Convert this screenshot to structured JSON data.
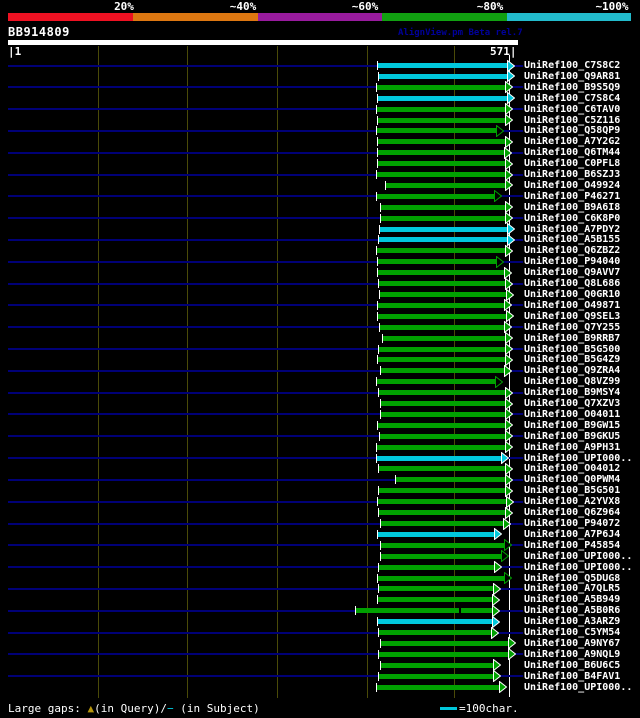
{
  "header": {
    "scale_labels": [
      "20%",
      "~40%",
      "~60%",
      "~80%",
      "~100%"
    ],
    "query_name": "BB914809",
    "version_text": "AlignView.pm Beta rel.7",
    "ruler_start_label": "|1",
    "ruler_end_label": "571|"
  },
  "colors": {
    "scale_segments": [
      "#ee1122",
      "#dd7711",
      "#991b9e",
      "#11a011",
      "#22bbcc"
    ],
    "bar_green": "#00a000",
    "bar_cyan": "#00c8dc",
    "navy_guide": "#000077",
    "gridline_olive": "#4a4a08",
    "version_navy": "#000099",
    "gap_triangle_yellow": "#b8960c",
    "white": "#ffffff"
  },
  "legend": {
    "large_gaps_prefix": "Large gaps: ",
    "query_gap_symbol": "▲",
    "query_gap_text": "(in Query)/",
    "subject_gap_symbol": "−",
    "subject_gap_text": " (in Subject)",
    "scale_bar_text": "=100char."
  },
  "rows": [
    {
      "id": "UniRef100_C7S8C2",
      "color": "cyan",
      "start": 378,
      "tip": 515,
      "hollow": false
    },
    {
      "id": "UniRef100_Q9AR81",
      "color": "cyan",
      "start": 379,
      "tip": 515,
      "hollow": false
    },
    {
      "id": "UniRef100_B9S5Q9",
      "color": "green",
      "start": 377,
      "tip": 513,
      "hollow": false
    },
    {
      "id": "UniRef100_C7S8C4",
      "color": "cyan",
      "start": 378,
      "tip": 515,
      "hollow": false
    },
    {
      "id": "UniRef100_C6TAV0",
      "color": "green",
      "start": 377,
      "tip": 513,
      "hollow": false
    },
    {
      "id": "UniRef100_C5Z116",
      "color": "green",
      "start": 378,
      "tip": 513,
      "hollow": false
    },
    {
      "id": "UniRef100_Q58QP9",
      "color": "green",
      "start": 377,
      "tip": 504,
      "hollow": true
    },
    {
      "id": "UniRef100_A7Y2G2",
      "color": "green",
      "start": 378,
      "tip": 513,
      "hollow": false
    },
    {
      "id": "UniRef100_Q6TM44",
      "color": "green",
      "start": 378,
      "tip": 512,
      "hollow": false
    },
    {
      "id": "UniRef100_C0PFL8",
      "color": "green",
      "start": 378,
      "tip": 513,
      "hollow": false
    },
    {
      "id": "UniRef100_B6SZJ3",
      "color": "green",
      "start": 377,
      "tip": 513,
      "hollow": false
    },
    {
      "id": "UniRef100_O49924",
      "color": "green",
      "start": 386,
      "tip": 513,
      "hollow": false
    },
    {
      "id": "UniRef100_P46271",
      "color": "green",
      "start": 377,
      "tip": 502,
      "hollow": true
    },
    {
      "id": "UniRef100_B9A6I8",
      "color": "green",
      "start": 381,
      "tip": 513,
      "hollow": false
    },
    {
      "id": "UniRef100_C6K8P0",
      "color": "green",
      "start": 381,
      "tip": 513,
      "hollow": false
    },
    {
      "id": "UniRef100_A7PDY2",
      "color": "cyan",
      "start": 380,
      "tip": 515,
      "hollow": false
    },
    {
      "id": "UniRef100_A5B155",
      "color": "cyan",
      "start": 379,
      "tip": 515,
      "hollow": false
    },
    {
      "id": "UniRef100_Q6ZBZ2",
      "color": "green",
      "start": 377,
      "tip": 513,
      "hollow": false
    },
    {
      "id": "UniRef100_P94040",
      "color": "green",
      "start": 378,
      "tip": 504,
      "hollow": true
    },
    {
      "id": "UniRef100_Q9AVV7",
      "color": "green",
      "start": 378,
      "tip": 512,
      "hollow": false
    },
    {
      "id": "UniRef100_Q8L686",
      "color": "green",
      "start": 379,
      "tip": 513,
      "hollow": false
    },
    {
      "id": "UniRef100_Q0GR10",
      "color": "green",
      "start": 380,
      "tip": 514,
      "hollow": false
    },
    {
      "id": "UniRef100_O49871",
      "color": "green",
      "start": 378,
      "tip": 512,
      "hollow": false
    },
    {
      "id": "UniRef100_Q9SEL3",
      "color": "green",
      "start": 378,
      "tip": 514,
      "hollow": false
    },
    {
      "id": "UniRef100_Q7Y255",
      "color": "green",
      "start": 380,
      "tip": 512,
      "hollow": false
    },
    {
      "id": "UniRef100_B9RRB7",
      "color": "green",
      "start": 383,
      "tip": 513,
      "hollow": false
    },
    {
      "id": "UniRef100_B5G500",
      "color": "green",
      "start": 379,
      "tip": 513,
      "hollow": false
    },
    {
      "id": "UniRef100_B5G4Z9",
      "color": "green",
      "start": 378,
      "tip": 513,
      "hollow": false
    },
    {
      "id": "UniRef100_Q9ZRA4",
      "color": "green",
      "start": 381,
      "tip": 512,
      "hollow": false
    },
    {
      "id": "UniRef100_Q8VZ99",
      "color": "green",
      "start": 377,
      "tip": 503,
      "hollow": true
    },
    {
      "id": "UniRef100_B9MSY4",
      "color": "green",
      "start": 379,
      "tip": 513,
      "hollow": false
    },
    {
      "id": "UniRef100_Q7XZV3",
      "color": "green",
      "start": 381,
      "tip": 513,
      "hollow": false
    },
    {
      "id": "UniRef100_O04011",
      "color": "green",
      "start": 381,
      "tip": 513,
      "hollow": false
    },
    {
      "id": "UniRef100_B9GW15",
      "color": "green",
      "start": 378,
      "tip": 513,
      "hollow": false
    },
    {
      "id": "UniRef100_B9GKU5",
      "color": "green",
      "start": 380,
      "tip": 513,
      "hollow": false
    },
    {
      "id": "UniRef100_A9PH31",
      "color": "green",
      "start": 377,
      "tip": 513,
      "hollow": false
    },
    {
      "id": "UniRef100_UPI000..",
      "color": "cyan",
      "start": 377,
      "tip": 509,
      "hollow": false
    },
    {
      "id": "UniRef100_O04012",
      "color": "green",
      "start": 379,
      "tip": 513,
      "hollow": false
    },
    {
      "id": "UniRef100_Q0PWM4",
      "color": "green",
      "start": 396,
      "tip": 513,
      "hollow": false
    },
    {
      "id": "UniRef100_B5G501",
      "color": "green",
      "start": 379,
      "tip": 513,
      "hollow": false
    },
    {
      "id": "UniRef100_A2YVX8",
      "color": "green",
      "start": 378,
      "tip": 514,
      "hollow": false
    },
    {
      "id": "UniRef100_Q6Z964",
      "color": "green",
      "start": 379,
      "tip": 513,
      "hollow": false
    },
    {
      "id": "UniRef100_P94072",
      "color": "green",
      "start": 381,
      "tip": 511,
      "hollow": false
    },
    {
      "id": "UniRef100_A7P6J4",
      "color": "cyan",
      "start": 378,
      "tip": 502,
      "hollow": false
    },
    {
      "id": "UniRef100_P45854",
      "color": "green",
      "start": 381,
      "tip": 512,
      "hollow": true
    },
    {
      "id": "UniRef100_UPI000..",
      "color": "green",
      "start": 381,
      "tip": 509,
      "hollow": true
    },
    {
      "id": "UniRef100_UPI000..",
      "color": "green",
      "start": 379,
      "tip": 502,
      "hollow": false
    },
    {
      "id": "UniRef100_Q5DUG8",
      "color": "green",
      "start": 378,
      "tip": 512,
      "hollow": true
    },
    {
      "id": "UniRef100_A7QLR5",
      "color": "green",
      "start": 379,
      "tip": 501,
      "hollow": false
    },
    {
      "id": "UniRef100_A5B949",
      "color": "green",
      "start": 378,
      "tip": 500,
      "hollow": false
    },
    {
      "id": "UniRef100_A5B0R6",
      "color": "green",
      "start": 356,
      "tip": 500,
      "hollow": false,
      "gap_at": 459
    },
    {
      "id": "UniRef100_A3ARZ9",
      "color": "cyan",
      "start": 378,
      "tip": 500,
      "hollow": false
    },
    {
      "id": "UniRef100_C5YM54",
      "color": "green",
      "start": 379,
      "tip": 499,
      "hollow": false
    },
    {
      "id": "UniRef100_A9NY67",
      "color": "green",
      "start": 381,
      "tip": 516,
      "hollow": false
    },
    {
      "id": "UniRef100_A9NQL9",
      "color": "green",
      "start": 379,
      "tip": 516,
      "hollow": false
    },
    {
      "id": "UniRef100_B6U6C5",
      "color": "green",
      "start": 381,
      "tip": 501,
      "hollow": false
    },
    {
      "id": "UniRef100_B4FAV1",
      "color": "green",
      "start": 379,
      "tip": 501,
      "hollow": false
    },
    {
      "id": "UniRef100_UPI000..",
      "color": "green",
      "start": 377,
      "tip": 507,
      "hollow": false
    }
  ]
}
